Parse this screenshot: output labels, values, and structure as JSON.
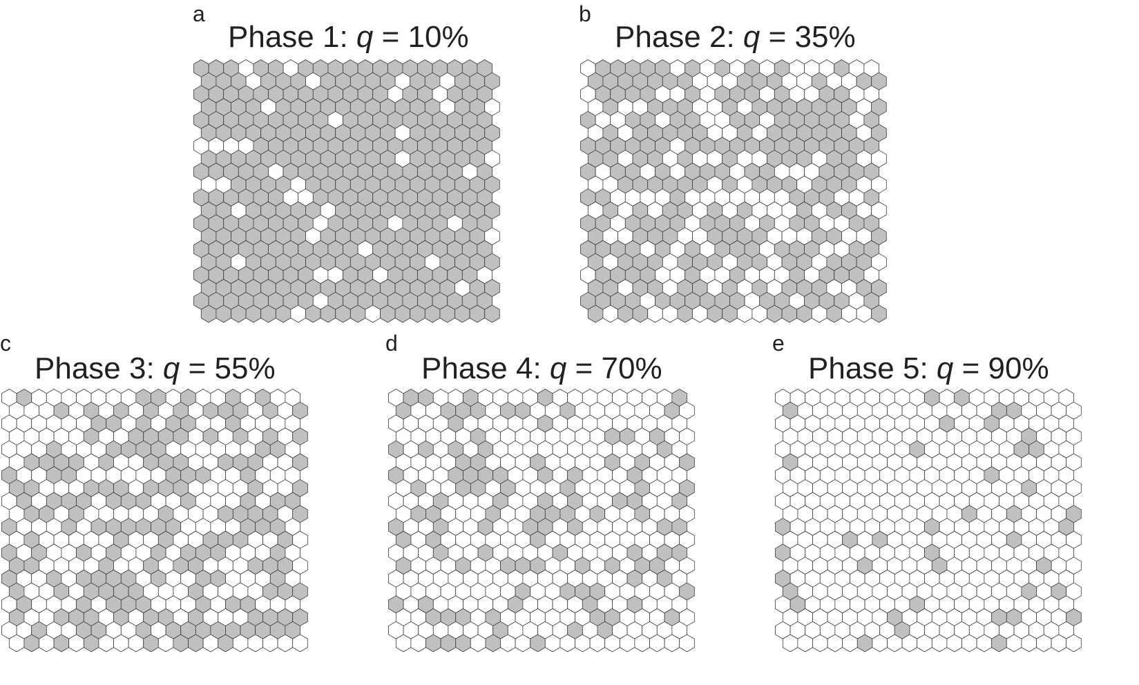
{
  "colors": {
    "filled": "#c0c0c0",
    "empty": "#ffffff",
    "stroke": "#3a3a3a",
    "text": "#231f20"
  },
  "panels": [
    {
      "letter": "a",
      "phase": "Phase 1: ",
      "q": "q",
      "value": " = 10%",
      "fraction_empty": 0.1,
      "seed": 11
    },
    {
      "letter": "b",
      "phase": "Phase 2: ",
      "q": "q",
      "value": " = 35%",
      "fraction_empty": 0.35,
      "seed": 23
    },
    {
      "letter": "c",
      "phase": "Phase 3: ",
      "q": "q",
      "value": " = 55%",
      "fraction_empty": 0.55,
      "seed": 37
    },
    {
      "letter": "d",
      "phase": "Phase 4: ",
      "q": "q",
      "value": " = 70%",
      "fraction_empty": 0.7,
      "seed": 51
    },
    {
      "letter": "e",
      "phase": "Phase 5: ",
      "q": "q",
      "value": " = 90%",
      "fraction_empty": 0.9,
      "seed": 73
    }
  ],
  "grid": {
    "rows": 20,
    "cols": 20
  }
}
